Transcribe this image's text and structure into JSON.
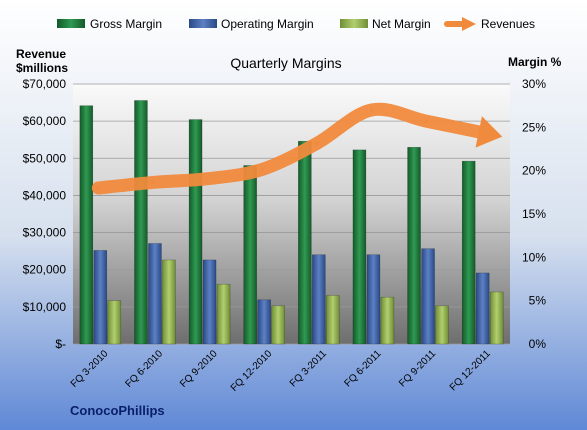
{
  "chart_data": {
    "type": "bar",
    "title": "Quarterly Margins",
    "company": "ConocoPhillips",
    "y_left_label_line1": "Revenue",
    "y_left_label_line2": "$millions",
    "y_right_label": "Margin %",
    "categories": [
      "FQ 3-2010",
      "FQ 6-2010",
      "FQ 9-2010",
      "FQ 12-2010",
      "FQ 3-2011",
      "FQ 6-2011",
      "FQ 9-2011",
      "FQ 12-2011"
    ],
    "y_left_ticks": [
      "$-",
      "$10,000",
      "$20,000",
      "$30,000",
      "$40,000",
      "$50,000",
      "$60,000",
      "$70,000"
    ],
    "y_right_ticks": [
      "0%",
      "5%",
      "10%",
      "15%",
      "20%",
      "25%",
      "30%"
    ],
    "ylim_left": [
      0,
      70000
    ],
    "ylim_right": [
      0,
      30
    ],
    "legend_position": "top",
    "grid": true,
    "series": [
      {
        "name": "Gross Margin",
        "axis": "right",
        "type": "bar",
        "color": "#1e7a3c",
        "values": [
          27.5,
          28.1,
          25.9,
          20.6,
          23.4,
          22.4,
          22.7,
          21.1
        ]
      },
      {
        "name": "Operating Margin",
        "axis": "right",
        "type": "bar",
        "color": "#3f63a8",
        "values": [
          10.8,
          11.6,
          9.7,
          5.1,
          10.3,
          10.3,
          11.0,
          8.2
        ]
      },
      {
        "name": "Net Margin",
        "axis": "right",
        "type": "bar",
        "color": "#9bbb59",
        "values": [
          5.0,
          9.7,
          6.9,
          4.4,
          5.6,
          5.4,
          4.4,
          6.0
        ]
      },
      {
        "name": "Revenues",
        "axis": "left",
        "type": "line",
        "color": "#f08a3c",
        "values": [
          42000,
          43500,
          44500,
          47000,
          54000,
          63000,
          60000,
          57000
        ]
      }
    ]
  }
}
